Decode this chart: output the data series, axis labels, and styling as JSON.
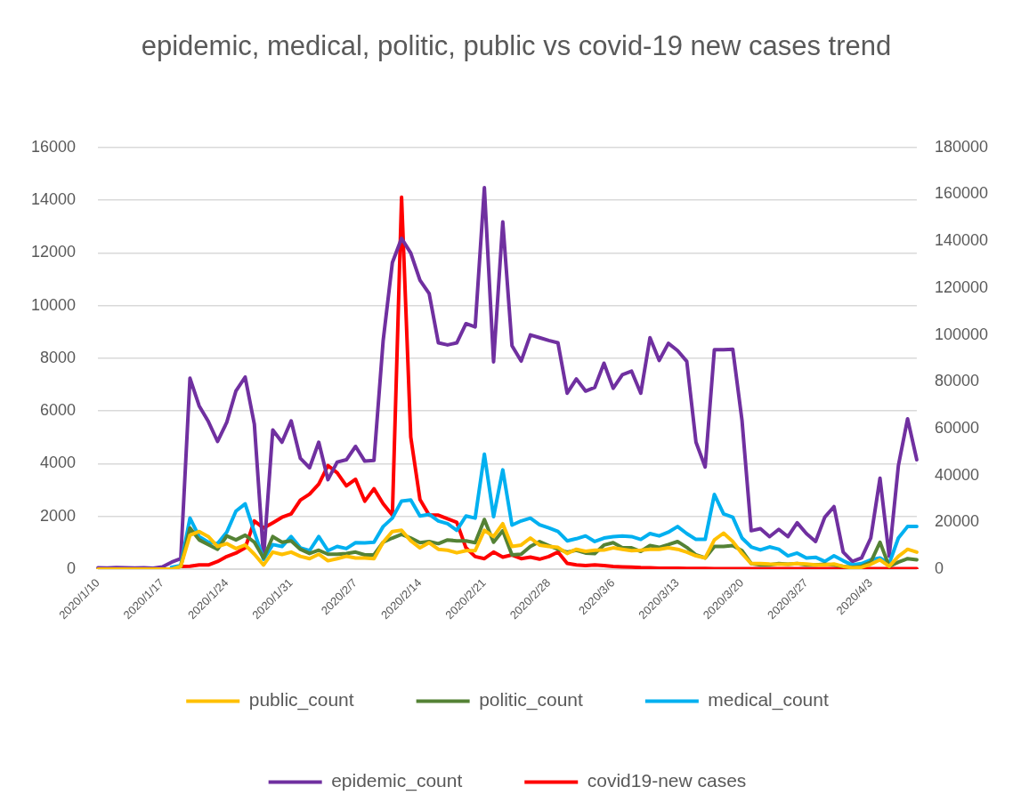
{
  "chart_data": {
    "type": "line",
    "title": "epidemic, medical, politic, public vs covid-19 new cases trend",
    "categories": [
      "2020/1/10",
      null,
      null,
      null,
      null,
      null,
      null,
      "2020/1/17",
      null,
      null,
      null,
      null,
      null,
      null,
      "2020/1/24",
      null,
      null,
      null,
      null,
      null,
      null,
      "2020/1/31",
      null,
      null,
      null,
      null,
      null,
      null,
      "2020/2/7",
      null,
      null,
      null,
      null,
      null,
      null,
      "2020/2/14",
      null,
      null,
      null,
      null,
      null,
      null,
      "2020/2/21",
      null,
      null,
      null,
      null,
      null,
      null,
      "2020/2/28",
      null,
      null,
      null,
      null,
      null,
      null,
      "2020/3/6",
      null,
      null,
      null,
      null,
      null,
      null,
      "2020/3/13",
      null,
      null,
      null,
      null,
      null,
      null,
      "2020/3/20",
      null,
      null,
      null,
      null,
      null,
      null,
      "2020/3/27",
      null,
      null,
      null,
      null,
      null,
      null,
      "2020/4/3",
      null,
      null,
      null,
      null,
      null
    ],
    "series": [
      {
        "name": "covid19-new cases",
        "color": "#ff0000",
        "values": [
          null,
          null,
          null,
          null,
          null,
          null,
          null,
          null,
          50,
          100,
          110,
          160,
          160,
          290,
          480,
          610,
          810,
          1830,
          1560,
          1760,
          1970,
          2100,
          2620,
          2850,
          3230,
          3930,
          3660,
          3160,
          3410,
          2580,
          3050,
          2480,
          2050,
          14110,
          5010,
          2640,
          2050,
          2050,
          1910,
          1780,
          810,
          480,
          400,
          650,
          460,
          540,
          400,
          460,
          380,
          480,
          650,
          220,
          160,
          140,
          160,
          140,
          100,
          90,
          80,
          60,
          50,
          40,
          40,
          40,
          30,
          30,
          30,
          20,
          20,
          20,
          20,
          20,
          20,
          20,
          20,
          20,
          20,
          20,
          20,
          20,
          20,
          20,
          20,
          20,
          20,
          20,
          20,
          20,
          20,
          20
        ]
      },
      {
        "name": "epidemic_count",
        "color": "#7030a0",
        "axis": "y2",
        "values": [
          600,
          500,
          700,
          600,
          500,
          600,
          400,
          1000,
          3000,
          4500,
          81500,
          69700,
          63000,
          54500,
          62700,
          76100,
          82000,
          61800,
          5000,
          59400,
          54200,
          63300,
          47300,
          43300,
          54200,
          38200,
          45700,
          46700,
          52400,
          46100,
          46400,
          97600,
          130900,
          141200,
          134900,
          123300,
          117600,
          96600,
          95700,
          96600,
          104800,
          103400,
          162800,
          88500,
          148200,
          95400,
          88800,
          100000,
          98800,
          97600,
          96600,
          75100,
          81200,
          76000,
          77600,
          87900,
          77200,
          83000,
          84500,
          75100,
          98800,
          89100,
          96400,
          93300,
          88700,
          54200,
          43600,
          93700,
          93700,
          93900,
          63600,
          16400,
          17300,
          13900,
          17000,
          13900,
          19800,
          15200,
          11800,
          22200,
          26700,
          7300,
          3300,
          4800,
          13300,
          38800,
          5500,
          44200,
          64200,
          46700
        ]
      },
      {
        "name": "medical_count",
        "color": "#00b0f0",
        "axis": "y2",
        "values": [
          null,
          null,
          null,
          null,
          null,
          null,
          null,
          null,
          800,
          1600,
          21800,
          13900,
          11500,
          10900,
          15800,
          24800,
          27900,
          15800,
          4200,
          10500,
          9700,
          13900,
          9100,
          7900,
          13900,
          7900,
          9700,
          8800,
          11300,
          11200,
          11500,
          18200,
          21800,
          29100,
          29500,
          22700,
          23400,
          20600,
          19400,
          16600,
          22700,
          21800,
          49100,
          22400,
          42400,
          18800,
          20600,
          21800,
          19000,
          17600,
          16100,
          12100,
          13000,
          14200,
          11800,
          13300,
          13900,
          14200,
          13900,
          12700,
          15200,
          14200,
          15800,
          18200,
          15200,
          12700,
          12700,
          31900,
          23600,
          22200,
          13300,
          9500,
          8200,
          9500,
          8500,
          5700,
          6900,
          4800,
          5100,
          3300,
          5700,
          3600,
          1800,
          2400,
          4000,
          4800,
          2400,
          13300,
          18200,
          18200
        ]
      },
      {
        "name": "politic_count",
        "color": "#548235",
        "axis": "y2",
        "values": [
          null,
          null,
          null,
          null,
          null,
          null,
          null,
          null,
          null,
          1200,
          17600,
          12500,
          10500,
          8500,
          14200,
          12500,
          14500,
          11500,
          4800,
          13900,
          11500,
          12100,
          8500,
          6700,
          8100,
          6400,
          6400,
          6700,
          7300,
          6100,
          6100,
          11500,
          13300,
          14900,
          13300,
          11300,
          11800,
          10900,
          12500,
          12100,
          12100,
          11300,
          21200,
          11500,
          16400,
          6100,
          6400,
          9700,
          11800,
          10100,
          8500,
          7300,
          8100,
          6900,
          6700,
          10300,
          11300,
          9100,
          9100,
          7600,
          10100,
          9300,
          10500,
          11800,
          9300,
          6100,
          4800,
          9700,
          9700,
          10100,
          7900,
          2400,
          1800,
          1800,
          2400,
          2100,
          2400,
          1800,
          1800,
          2100,
          1800,
          1200,
          800,
          1200,
          3000,
          11500,
          1200,
          3000,
          4500,
          4000
        ]
      },
      {
        "name": "public_count",
        "color": "#ffc000",
        "axis": "y2",
        "values": [
          0,
          0,
          0,
          0,
          0,
          0,
          0,
          0,
          0,
          1200,
          14500,
          16100,
          13900,
          9700,
          10900,
          8800,
          10300,
          6400,
          1800,
          7300,
          6300,
          7300,
          5500,
          4500,
          6400,
          3600,
          4500,
          5500,
          4800,
          4800,
          4500,
          11500,
          16100,
          16600,
          12100,
          9100,
          11300,
          8500,
          8100,
          7000,
          7900,
          7900,
          16600,
          13900,
          19400,
          9700,
          10300,
          13300,
          10300,
          9700,
          9300,
          6700,
          8500,
          7600,
          8100,
          8200,
          9100,
          8500,
          7900,
          8100,
          8500,
          8500,
          9100,
          8500,
          7300,
          5700,
          4800,
          12500,
          15400,
          11800,
          6700,
          2400,
          2400,
          2200,
          2100,
          2100,
          2400,
          2200,
          1800,
          1800,
          2200,
          1200,
          600,
          800,
          2100,
          4000,
          1200,
          5500,
          8500,
          7300
        ]
      }
    ],
    "ylim": [
      0,
      16000
    ],
    "yticks": [
      0,
      2000,
      4000,
      6000,
      8000,
      10000,
      12000,
      14000,
      16000
    ],
    "y2lim": [
      0,
      180000
    ],
    "y2ticks": [
      0,
      20000,
      40000,
      60000,
      80000,
      100000,
      120000,
      140000,
      160000,
      180000
    ],
    "grid": "y",
    "legend": "bottom",
    "marker": "none",
    "line_style": "solid"
  }
}
